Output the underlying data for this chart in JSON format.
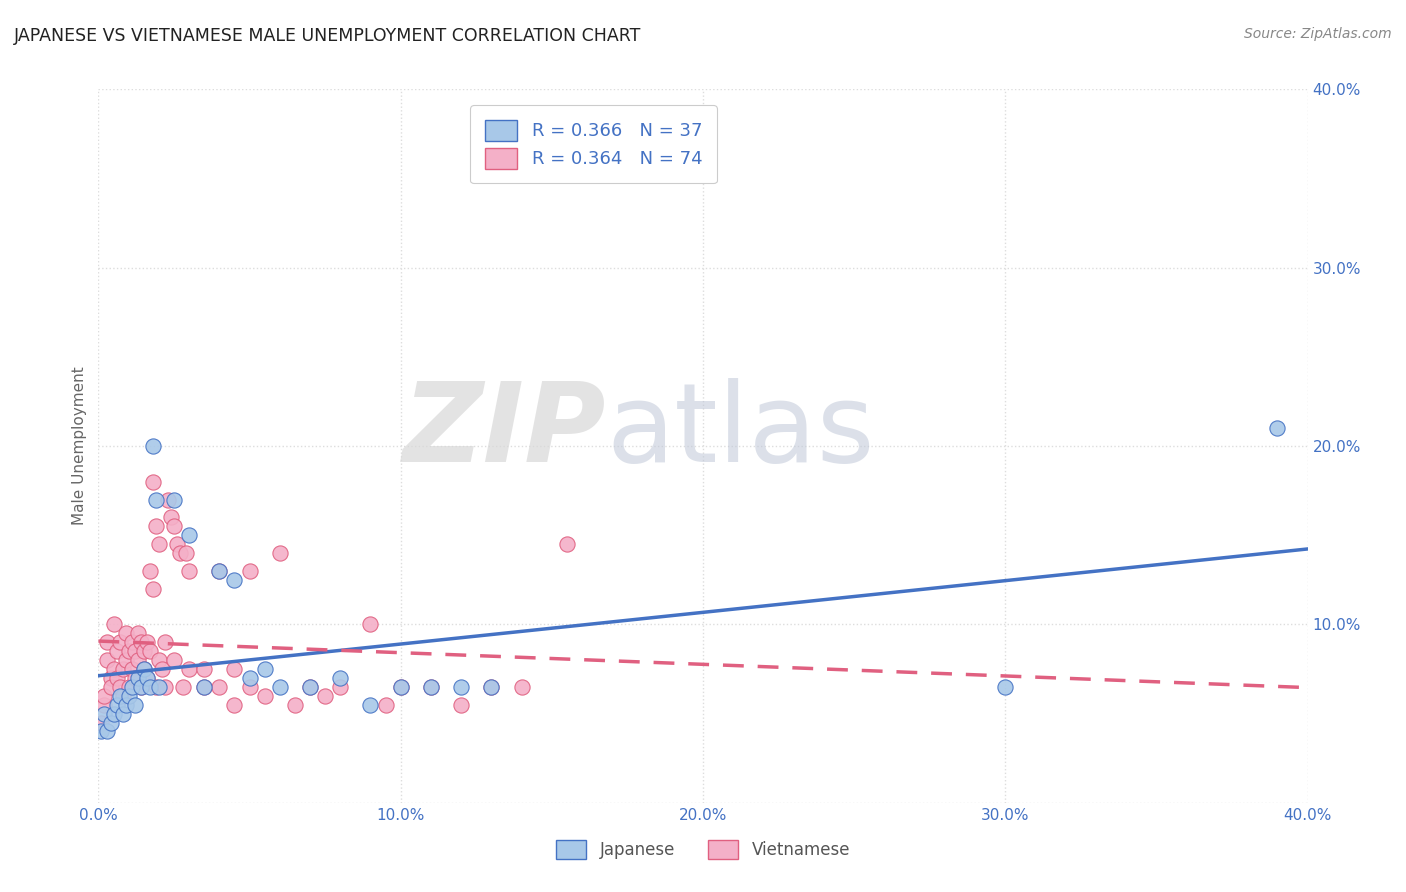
{
  "title": "JAPANESE VS VIETNAMESE MALE UNEMPLOYMENT CORRELATION CHART",
  "source": "Source: ZipAtlas.com",
  "ylabel": "Male Unemployment",
  "xlim": [
    0.0,
    0.4
  ],
  "ylim": [
    0.0,
    0.4
  ],
  "background_color": "#ffffff",
  "grid_color": "#dddddd",
  "japanese_color": "#a8c8e8",
  "vietnamese_color": "#f4b0c8",
  "japanese_line_color": "#4472c4",
  "vietnamese_line_color": "#e06080",
  "legend_R_japanese": "R = 0.366",
  "legend_N_japanese": "N = 37",
  "legend_R_vietnamese": "R = 0.364",
  "legend_N_vietnamese": "N = 74",
  "title_color": "#222222",
  "axis_label_color": "#666666",
  "tick_color": "#4472c4",
  "legend_text_color": "#4472c4",
  "japanese_points": [
    [
      0.001,
      0.04
    ],
    [
      0.002,
      0.05
    ],
    [
      0.003,
      0.04
    ],
    [
      0.004,
      0.045
    ],
    [
      0.005,
      0.05
    ],
    [
      0.006,
      0.055
    ],
    [
      0.007,
      0.06
    ],
    [
      0.008,
      0.05
    ],
    [
      0.009,
      0.055
    ],
    [
      0.01,
      0.06
    ],
    [
      0.011,
      0.065
    ],
    [
      0.012,
      0.055
    ],
    [
      0.013,
      0.07
    ],
    [
      0.014,
      0.065
    ],
    [
      0.015,
      0.075
    ],
    [
      0.016,
      0.07
    ],
    [
      0.017,
      0.065
    ],
    [
      0.018,
      0.2
    ],
    [
      0.019,
      0.17
    ],
    [
      0.02,
      0.065
    ],
    [
      0.025,
      0.17
    ],
    [
      0.03,
      0.15
    ],
    [
      0.035,
      0.065
    ],
    [
      0.04,
      0.13
    ],
    [
      0.045,
      0.125
    ],
    [
      0.05,
      0.07
    ],
    [
      0.055,
      0.075
    ],
    [
      0.06,
      0.065
    ],
    [
      0.07,
      0.065
    ],
    [
      0.08,
      0.07
    ],
    [
      0.09,
      0.055
    ],
    [
      0.1,
      0.065
    ],
    [
      0.11,
      0.065
    ],
    [
      0.12,
      0.065
    ],
    [
      0.13,
      0.065
    ],
    [
      0.3,
      0.065
    ],
    [
      0.39,
      0.21
    ]
  ],
  "vietnamese_points": [
    [
      0.001,
      0.045
    ],
    [
      0.002,
      0.055
    ],
    [
      0.002,
      0.06
    ],
    [
      0.003,
      0.08
    ],
    [
      0.003,
      0.09
    ],
    [
      0.004,
      0.07
    ],
    [
      0.004,
      0.065
    ],
    [
      0.005,
      0.075
    ],
    [
      0.005,
      0.1
    ],
    [
      0.006,
      0.085
    ],
    [
      0.006,
      0.07
    ],
    [
      0.007,
      0.065
    ],
    [
      0.007,
      0.09
    ],
    [
      0.008,
      0.075
    ],
    [
      0.008,
      0.06
    ],
    [
      0.009,
      0.08
    ],
    [
      0.009,
      0.095
    ],
    [
      0.01,
      0.085
    ],
    [
      0.01,
      0.065
    ],
    [
      0.011,
      0.075
    ],
    [
      0.011,
      0.09
    ],
    [
      0.012,
      0.085
    ],
    [
      0.012,
      0.07
    ],
    [
      0.013,
      0.095
    ],
    [
      0.013,
      0.08
    ],
    [
      0.014,
      0.09
    ],
    [
      0.014,
      0.065
    ],
    [
      0.015,
      0.085
    ],
    [
      0.015,
      0.075
    ],
    [
      0.016,
      0.09
    ],
    [
      0.016,
      0.07
    ],
    [
      0.017,
      0.085
    ],
    [
      0.017,
      0.13
    ],
    [
      0.018,
      0.18
    ],
    [
      0.018,
      0.12
    ],
    [
      0.019,
      0.155
    ],
    [
      0.019,
      0.065
    ],
    [
      0.02,
      0.145
    ],
    [
      0.02,
      0.08
    ],
    [
      0.021,
      0.075
    ],
    [
      0.022,
      0.065
    ],
    [
      0.022,
      0.09
    ],
    [
      0.023,
      0.17
    ],
    [
      0.024,
      0.16
    ],
    [
      0.025,
      0.155
    ],
    [
      0.025,
      0.08
    ],
    [
      0.026,
      0.145
    ],
    [
      0.027,
      0.14
    ],
    [
      0.028,
      0.065
    ],
    [
      0.029,
      0.14
    ],
    [
      0.03,
      0.075
    ],
    [
      0.03,
      0.13
    ],
    [
      0.035,
      0.065
    ],
    [
      0.035,
      0.075
    ],
    [
      0.04,
      0.065
    ],
    [
      0.04,
      0.13
    ],
    [
      0.045,
      0.075
    ],
    [
      0.045,
      0.055
    ],
    [
      0.05,
      0.065
    ],
    [
      0.05,
      0.13
    ],
    [
      0.055,
      0.06
    ],
    [
      0.06,
      0.14
    ],
    [
      0.065,
      0.055
    ],
    [
      0.07,
      0.065
    ],
    [
      0.075,
      0.06
    ],
    [
      0.08,
      0.065
    ],
    [
      0.09,
      0.1
    ],
    [
      0.095,
      0.055
    ],
    [
      0.1,
      0.065
    ],
    [
      0.11,
      0.065
    ],
    [
      0.12,
      0.055
    ],
    [
      0.13,
      0.065
    ],
    [
      0.14,
      0.065
    ],
    [
      0.155,
      0.145
    ]
  ]
}
